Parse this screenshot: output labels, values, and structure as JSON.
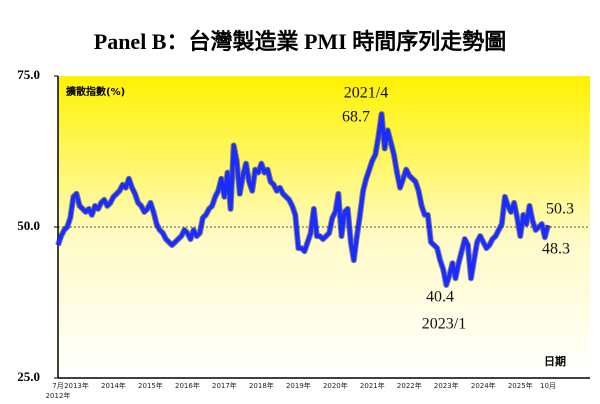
{
  "chart_data": {
    "type": "line",
    "title": "Panel B：台灣製造業 PMI 時間序列走勢圖",
    "y_label": "擴散指數(%)",
    "x_label": "日期",
    "x_start_year": "2012年",
    "categories": [
      "7月",
      null,
      null,
      null,
      null,
      null,
      "2013年",
      null,
      null,
      null,
      null,
      null,
      null,
      null,
      null,
      null,
      null,
      null,
      "2014年",
      null,
      null,
      null,
      null,
      null,
      null,
      null,
      null,
      null,
      null,
      null,
      "2015年",
      null,
      null,
      null,
      null,
      null,
      null,
      null,
      null,
      null,
      null,
      null,
      "2016年",
      null,
      null,
      null,
      null,
      null,
      null,
      null,
      null,
      null,
      null,
      null,
      "2017年",
      null,
      null,
      null,
      null,
      null,
      null,
      null,
      null,
      null,
      null,
      null,
      "2018年",
      null,
      null,
      null,
      null,
      null,
      null,
      null,
      null,
      null,
      null,
      null,
      "2019年",
      null,
      null,
      null,
      null,
      null,
      null,
      null,
      null,
      null,
      null,
      null,
      "2020年",
      null,
      null,
      null,
      null,
      null,
      null,
      null,
      null,
      null,
      null,
      null,
      "2021年",
      null,
      null,
      null,
      null,
      null,
      null,
      null,
      null,
      null,
      null,
      null,
      "2022年",
      null,
      null,
      null,
      null,
      null,
      null,
      null,
      null,
      null,
      null,
      null,
      "2023年",
      null,
      null,
      null,
      null,
      null,
      null,
      null,
      null,
      null,
      null,
      null,
      "2024年",
      null,
      null,
      null,
      null,
      null,
      null,
      null,
      null,
      null,
      null,
      null,
      "2025年",
      null,
      null,
      null,
      null,
      null,
      null,
      null,
      null,
      "10月"
    ],
    "series": [
      {
        "name": "PMI",
        "color": "#1a2cff",
        "values": [
          47.0,
          48.5,
          49.5,
          50.0,
          51.5,
          55.0,
          55.5,
          53.5,
          53.0,
          52.5,
          53.0,
          52.0,
          53.5,
          53.0,
          54.0,
          54.5,
          53.5,
          54.0,
          55.0,
          55.5,
          56.0,
          57.0,
          56.5,
          58.0,
          56.5,
          55.5,
          54.0,
          53.5,
          52.5,
          53.0,
          54.0,
          52.5,
          50.5,
          49.5,
          49.0,
          48.0,
          47.5,
          47.0,
          47.5,
          48.0,
          48.5,
          49.5,
          49.0,
          48.0,
          49.5,
          48.5,
          49.0,
          51.5,
          52.0,
          53.0,
          53.5,
          55.0,
          56.0,
          58.0,
          55.0,
          59.0,
          53.0,
          63.5,
          61.0,
          55.5,
          58.5,
          60.5,
          57.5,
          56.0,
          59.5,
          59.0,
          60.5,
          59.0,
          59.5,
          57.5,
          57.0,
          56.0,
          56.5,
          55.5,
          55.0,
          54.5,
          53.5,
          52.0,
          46.5,
          46.5,
          46.0,
          47.5,
          49.0,
          53.0,
          48.5,
          48.5,
          48.0,
          48.5,
          49.0,
          51.5,
          52.5,
          55.5,
          48.5,
          52.5,
          53.0,
          47.5,
          44.5,
          48.5,
          52.0,
          56.0,
          58.0,
          59.5,
          61.0,
          62.0,
          65.0,
          68.7,
          63.0,
          66.0,
          64.0,
          62.0,
          59.0,
          56.5,
          58.0,
          59.5,
          58.5,
          58.0,
          57.5,
          56.0,
          53.5,
          52.0,
          52.0,
          47.5,
          47.0,
          46.5,
          44.5,
          43.0,
          40.4,
          42.0,
          44.0,
          41.5,
          44.0,
          46.0,
          48.0,
          47.0,
          41.5,
          44.5,
          47.5,
          48.5,
          47.5,
          46.5,
          47.0,
          48.0,
          48.5,
          49.5,
          50.5,
          55.0,
          53.5,
          52.5,
          54.0,
          51.5,
          48.5,
          52.0,
          50.5,
          53.5,
          51.0,
          49.5,
          50.0,
          50.5,
          48.3,
          50.3
        ]
      }
    ],
    "ylim": [
      25,
      75
    ],
    "yticks": [
      {
        "value": 25,
        "label": "25.0"
      },
      {
        "value": 50,
        "label": "50.0"
      },
      {
        "value": 75,
        "label": "75.0"
      }
    ],
    "ref_line": 50,
    "annotations": [
      "2021/4",
      "68.7",
      "40.4",
      "2023/1",
      "50.3",
      "48.3"
    ]
  }
}
